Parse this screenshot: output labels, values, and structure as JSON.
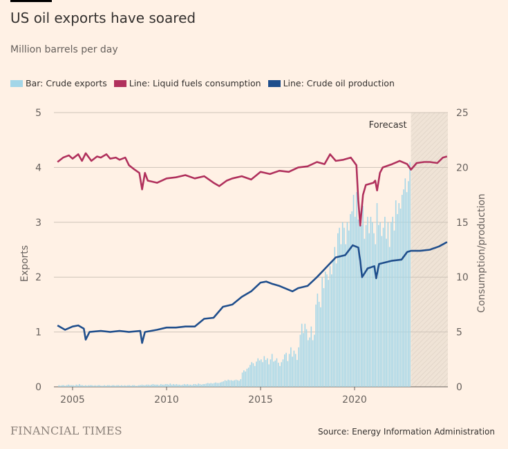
{
  "header": {
    "title": "US oil exports have soared",
    "subtitle": "Million barrels per day"
  },
  "legend": [
    {
      "label": "Bar: Crude exports",
      "color": "#a3d6e8"
    },
    {
      "label": "Line: Liquid fuels consumption",
      "color": "#b0305c"
    },
    {
      "label": "Line: Crude oil production",
      "color": "#1f4e8c"
    }
  ],
  "footer": {
    "logo": "FINANCIAL TIMES",
    "source": "Source: Energy Information Administration"
  },
  "chart_data": {
    "type": "bar+line",
    "title": "US oil exports have soared",
    "subtitle": "Million barrels per day",
    "xlim": [
      2004,
      2025
    ],
    "x_ticks": [
      2005,
      2010,
      2015,
      2020
    ],
    "x_tick_labels": [
      "2005",
      "2010",
      "2015",
      "2020"
    ],
    "left_axis": {
      "label": "Exports",
      "ylim": [
        0,
        5
      ],
      "ticks": [
        0,
        1,
        2,
        3,
        4,
        5
      ],
      "tick_labels": [
        "0",
        "1",
        "2",
        "3",
        "4",
        "5"
      ]
    },
    "right_axis": {
      "label": "Consumption/production",
      "ylim": [
        0,
        25
      ],
      "ticks": [
        0,
        5,
        10,
        15,
        20,
        25
      ],
      "tick_labels": [
        "0",
        "5",
        "10",
        "15",
        "20",
        "25"
      ]
    },
    "grid": true,
    "forecast": {
      "label": "Forecast",
      "start": 2023.0,
      "end": 2024.92
    },
    "exports": {
      "name": "Crude exports",
      "start": 2004.25,
      "step_months": 1,
      "color": "#a3d6e8",
      "values": [
        0.03,
        0.02,
        0.03,
        0.03,
        0.02,
        0.03,
        0.04,
        0.03,
        0.03,
        0.03,
        0.02,
        0.04,
        0.03,
        0.05,
        0.03,
        0.03,
        0.02,
        0.03,
        0.02,
        0.03,
        0.03,
        0.03,
        0.02,
        0.03,
        0.02,
        0.03,
        0.03,
        0.02,
        0.02,
        0.03,
        0.02,
        0.03,
        0.03,
        0.02,
        0.03,
        0.03,
        0.02,
        0.03,
        0.03,
        0.02,
        0.03,
        0.02,
        0.03,
        0.02,
        0.03,
        0.03,
        0.02,
        0.03,
        0.03,
        0.02,
        0.02,
        0.03,
        0.03,
        0.04,
        0.03,
        0.03,
        0.04,
        0.04,
        0.03,
        0.04,
        0.05,
        0.04,
        0.04,
        0.04,
        0.03,
        0.05,
        0.04,
        0.04,
        0.05,
        0.05,
        0.04,
        0.06,
        0.04,
        0.05,
        0.04,
        0.05,
        0.04,
        0.04,
        0.03,
        0.04,
        0.05,
        0.04,
        0.05,
        0.04,
        0.04,
        0.03,
        0.05,
        0.05,
        0.04,
        0.06,
        0.05,
        0.04,
        0.05,
        0.05,
        0.06,
        0.07,
        0.06,
        0.07,
        0.06,
        0.07,
        0.08,
        0.07,
        0.07,
        0.08,
        0.09,
        0.1,
        0.12,
        0.11,
        0.13,
        0.12,
        0.12,
        0.11,
        0.12,
        0.13,
        0.12,
        0.11,
        0.14,
        0.26,
        0.3,
        0.28,
        0.33,
        0.35,
        0.4,
        0.45,
        0.43,
        0.38,
        0.46,
        0.52,
        0.48,
        0.5,
        0.45,
        0.56,
        0.49,
        0.52,
        0.41,
        0.5,
        0.6,
        0.46,
        0.48,
        0.52,
        0.44,
        0.38,
        0.45,
        0.5,
        0.59,
        0.62,
        0.47,
        0.6,
        0.72,
        0.55,
        0.66,
        0.6,
        0.49,
        0.72,
        0.95,
        1.15,
        0.98,
        1.15,
        1.05,
        0.85,
        0.9,
        1.1,
        0.85,
        0.95,
        1.5,
        1.7,
        1.55,
        1.45,
        2.0,
        1.8,
        2.1,
        2.05,
        1.95,
        2.2,
        2.05,
        2.3,
        2.55,
        2.25,
        2.8,
        2.9,
        2.6,
        3.0,
        2.9,
        2.6,
        3.0,
        2.85,
        3.15,
        3.2,
        3.5,
        3.1,
        3.55,
        3.05,
        3.2,
        2.95,
        3.3,
        2.7,
        2.95,
        3.1,
        2.8,
        3.1,
        3.0,
        2.8,
        2.6,
        3.35,
        2.95,
        3.0,
        2.75,
        2.9,
        3.1,
        2.7,
        3.0,
        2.55,
        3.0,
        3.1,
        2.85,
        3.4,
        3.15,
        3.35,
        3.25,
        3.5,
        3.6,
        3.8,
        3.55,
        3.75,
        4.1
      ]
    },
    "consumption": {
      "name": "Liquid fuels consumption",
      "axis": "right",
      "color": "#b0305c",
      "x": [
        2004.2,
        2004.5,
        2004.8,
        2005.0,
        2005.3,
        2005.5,
        2005.7,
        2006.0,
        2006.3,
        2006.5,
        2006.8,
        2007.0,
        2007.3,
        2007.5,
        2007.8,
        2008.0,
        2008.3,
        2008.55,
        2008.7,
        2008.85,
        2009.0,
        2009.5,
        2010.0,
        2010.5,
        2011.0,
        2011.5,
        2012.0,
        2012.5,
        2012.8,
        2013.2,
        2013.5,
        2014.0,
        2014.5,
        2015.0,
        2015.5,
        2016.0,
        2016.5,
        2017.0,
        2017.5,
        2018.0,
        2018.4,
        2018.7,
        2019.0,
        2019.4,
        2019.8,
        2020.1,
        2020.2,
        2020.3,
        2020.45,
        2020.6,
        2021.0,
        2021.1,
        2021.2,
        2021.35,
        2021.5,
        2022.0,
        2022.4,
        2022.8,
        2023.0,
        2023.3,
        2023.7,
        2024.0,
        2024.4,
        2024.7,
        2024.92
      ],
      "y": [
        20.5,
        20.9,
        21.1,
        20.8,
        21.2,
        20.6,
        21.3,
        20.6,
        21.0,
        20.9,
        21.2,
        20.8,
        20.9,
        20.7,
        20.9,
        20.2,
        19.8,
        19.5,
        18.0,
        19.5,
        18.8,
        18.6,
        19.0,
        19.1,
        19.3,
        19.0,
        19.2,
        18.6,
        18.3,
        18.8,
        19.0,
        19.2,
        18.9,
        19.6,
        19.4,
        19.7,
        19.6,
        20.0,
        20.1,
        20.5,
        20.3,
        21.2,
        20.6,
        20.7,
        20.9,
        20.2,
        17.0,
        14.7,
        17.5,
        18.4,
        18.6,
        18.8,
        17.9,
        19.5,
        20.0,
        20.3,
        20.6,
        20.3,
        19.8,
        20.4,
        20.5,
        20.5,
        20.4,
        20.9,
        21.0
      ]
    },
    "production": {
      "name": "Crude oil production",
      "axis": "right",
      "color": "#1f4e8c",
      "x": [
        2004.2,
        2004.6,
        2005.0,
        2005.3,
        2005.6,
        2005.7,
        2005.9,
        2006.5,
        2007.0,
        2007.5,
        2008.0,
        2008.6,
        2008.7,
        2008.85,
        2009.5,
        2010.0,
        2010.5,
        2011.0,
        2011.5,
        2012.0,
        2012.5,
        2013.0,
        2013.5,
        2014.0,
        2014.5,
        2015.0,
        2015.3,
        2015.6,
        2016.0,
        2016.7,
        2017.0,
        2017.5,
        2018.0,
        2018.5,
        2019.0,
        2019.5,
        2019.9,
        2020.2,
        2020.3,
        2020.4,
        2020.7,
        2021.05,
        2021.15,
        2021.3,
        2022.0,
        2022.5,
        2022.8,
        2023.0,
        2023.5,
        2024.0,
        2024.5,
        2024.92
      ],
      "y": [
        5.6,
        5.2,
        5.5,
        5.6,
        5.3,
        4.3,
        5.0,
        5.1,
        5.0,
        5.1,
        5.0,
        5.1,
        4.0,
        5.0,
        5.2,
        5.4,
        5.4,
        5.5,
        5.5,
        6.2,
        6.3,
        7.3,
        7.5,
        8.2,
        8.7,
        9.5,
        9.6,
        9.4,
        9.2,
        8.7,
        9.0,
        9.2,
        10.0,
        10.9,
        11.8,
        12.0,
        12.9,
        12.7,
        11.5,
        10.0,
        10.8,
        11.0,
        9.9,
        11.2,
        11.5,
        11.6,
        12.3,
        12.4,
        12.4,
        12.5,
        12.8,
        13.2
      ]
    }
  }
}
